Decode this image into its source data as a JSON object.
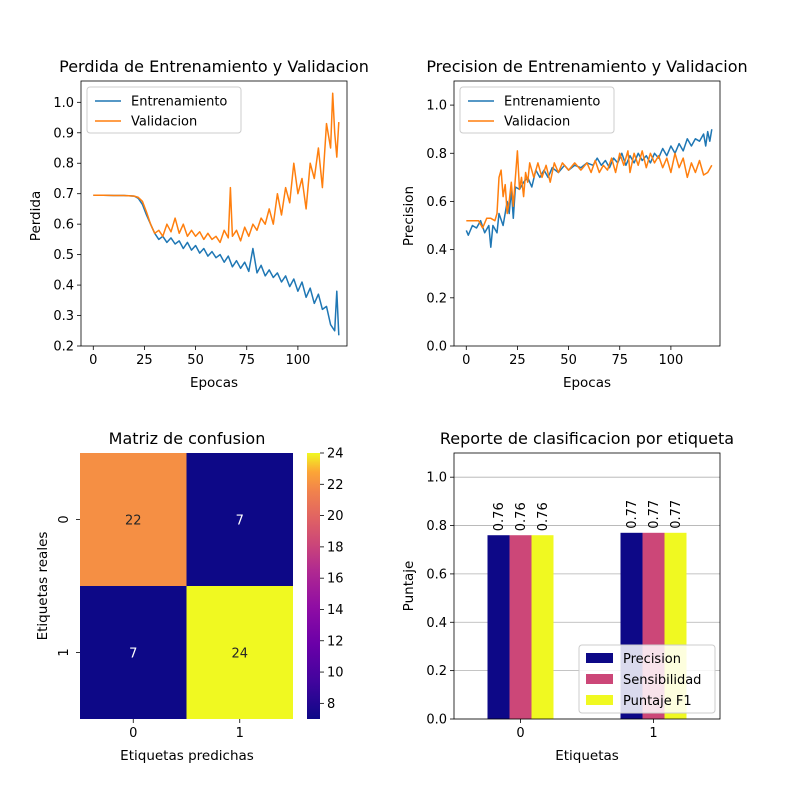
{
  "colors": {
    "train": "#1f77b4",
    "val": "#ff7f0e",
    "precision": "#0d0887",
    "sensitivity": "#cc4778",
    "f1": "#f0f921"
  },
  "chart_data": [
    {
      "type": "line",
      "title": "Perdida de Entrenamiento y Validacion",
      "xlabel": "Epocas",
      "ylabel": "Perdida",
      "xlim": [
        -6,
        124
      ],
      "ylim": [
        0.2,
        1.07
      ],
      "xticks": [
        0,
        25,
        50,
        75,
        100
      ],
      "yticks": [
        0.2,
        0.3,
        0.4,
        0.5,
        0.6,
        0.7,
        0.8,
        0.9,
        1.0
      ],
      "legend_loc": "upper-left",
      "grid": false,
      "series": [
        {
          "name": "Entrenamiento",
          "points": [
            [
              0,
              0.695
            ],
            [
              5,
              0.695
            ],
            [
              10,
              0.694
            ],
            [
              15,
              0.694
            ],
            [
              20,
              0.692
            ],
            [
              22,
              0.685
            ],
            [
              24,
              0.665
            ],
            [
              26,
              0.63
            ],
            [
              28,
              0.6
            ],
            [
              30,
              0.57
            ],
            [
              32,
              0.55
            ],
            [
              34,
              0.56
            ],
            [
              36,
              0.54
            ],
            [
              38,
              0.555
            ],
            [
              40,
              0.535
            ],
            [
              42,
              0.545
            ],
            [
              44,
              0.52
            ],
            [
              46,
              0.54
            ],
            [
              48,
              0.515
            ],
            [
              50,
              0.53
            ],
            [
              52,
              0.505
            ],
            [
              54,
              0.52
            ],
            [
              56,
              0.495
            ],
            [
              58,
              0.51
            ],
            [
              60,
              0.49
            ],
            [
              62,
              0.5
            ],
            [
              64,
              0.475
            ],
            [
              66,
              0.495
            ],
            [
              68,
              0.46
            ],
            [
              70,
              0.48
            ],
            [
              72,
              0.455
            ],
            [
              74,
              0.475
            ],
            [
              76,
              0.445
            ],
            [
              78,
              0.52
            ],
            [
              80,
              0.44
            ],
            [
              82,
              0.465
            ],
            [
              84,
              0.43
            ],
            [
              86,
              0.45
            ],
            [
              88,
              0.425
            ],
            [
              90,
              0.44
            ],
            [
              92,
              0.41
            ],
            [
              94,
              0.43
            ],
            [
              96,
              0.395
            ],
            [
              98,
              0.42
            ],
            [
              100,
              0.38
            ],
            [
              102,
              0.41
            ],
            [
              104,
              0.36
            ],
            [
              106,
              0.39
            ],
            [
              108,
              0.34
            ],
            [
              110,
              0.37
            ],
            [
              112,
              0.32
            ],
            [
              114,
              0.33
            ],
            [
              116,
              0.27
            ],
            [
              118,
              0.25
            ],
            [
              119,
              0.38
            ],
            [
              120,
              0.235
            ]
          ]
        },
        {
          "name": "Validacion",
          "points": [
            [
              0,
              0.695
            ],
            [
              5,
              0.695
            ],
            [
              10,
              0.694
            ],
            [
              15,
              0.694
            ],
            [
              20,
              0.692
            ],
            [
              22,
              0.688
            ],
            [
              24,
              0.675
            ],
            [
              26,
              0.64
            ],
            [
              28,
              0.6
            ],
            [
              30,
              0.57
            ],
            [
              32,
              0.58
            ],
            [
              34,
              0.56
            ],
            [
              36,
              0.6
            ],
            [
              38,
              0.575
            ],
            [
              40,
              0.62
            ],
            [
              42,
              0.57
            ],
            [
              44,
              0.6
            ],
            [
              46,
              0.56
            ],
            [
              48,
              0.58
            ],
            [
              50,
              0.56
            ],
            [
              52,
              0.575
            ],
            [
              54,
              0.55
            ],
            [
              56,
              0.57
            ],
            [
              58,
              0.55
            ],
            [
              60,
              0.56
            ],
            [
              62,
              0.54
            ],
            [
              64,
              0.58
            ],
            [
              66,
              0.555
            ],
            [
              67,
              0.72
            ],
            [
              68,
              0.56
            ],
            [
              70,
              0.58
            ],
            [
              72,
              0.545
            ],
            [
              74,
              0.59
            ],
            [
              76,
              0.56
            ],
            [
              78,
              0.6
            ],
            [
              80,
              0.58
            ],
            [
              82,
              0.62
            ],
            [
              84,
              0.6
            ],
            [
              86,
              0.65
            ],
            [
              88,
              0.6
            ],
            [
              90,
              0.7
            ],
            [
              92,
              0.63
            ],
            [
              94,
              0.72
            ],
            [
              96,
              0.67
            ],
            [
              98,
              0.8
            ],
            [
              100,
              0.7
            ],
            [
              102,
              0.75
            ],
            [
              104,
              0.65
            ],
            [
              106,
              0.8
            ],
            [
              108,
              0.75
            ],
            [
              110,
              0.85
            ],
            [
              112,
              0.72
            ],
            [
              114,
              0.93
            ],
            [
              116,
              0.85
            ],
            [
              117,
              1.03
            ],
            [
              118,
              0.9
            ],
            [
              119,
              0.82
            ],
            [
              120,
              0.935
            ]
          ]
        }
      ]
    },
    {
      "type": "line",
      "title": "Precision de Entrenamiento y Validacion",
      "xlabel": "Epocas",
      "ylabel": "Precision",
      "xlim": [
        -6,
        124
      ],
      "ylim": [
        0.0,
        1.1
      ],
      "xticks": [
        0,
        25,
        50,
        75,
        100
      ],
      "yticks": [
        0.0,
        0.2,
        0.4,
        0.6,
        0.8,
        1.0
      ],
      "legend_loc": "upper-left",
      "grid": false,
      "series": [
        {
          "name": "Entrenamiento",
          "points": [
            [
              0,
              0.48
            ],
            [
              1,
              0.46
            ],
            [
              3,
              0.5
            ],
            [
              5,
              0.49
            ],
            [
              7,
              0.52
            ],
            [
              9,
              0.47
            ],
            [
              11,
              0.5
            ],
            [
              12,
              0.41
            ],
            [
              13,
              0.5
            ],
            [
              15,
              0.47
            ],
            [
              16,
              0.55
            ],
            [
              18,
              0.5
            ],
            [
              20,
              0.6
            ],
            [
              21,
              0.55
            ],
            [
              22,
              0.65
            ],
            [
              23,
              0.53
            ],
            [
              24,
              0.66
            ],
            [
              26,
              0.65
            ],
            [
              28,
              0.68
            ],
            [
              30,
              0.7
            ],
            [
              32,
              0.66
            ],
            [
              34,
              0.73
            ],
            [
              36,
              0.7
            ],
            [
              38,
              0.73
            ],
            [
              40,
              0.7
            ],
            [
              42,
              0.74
            ],
            [
              45,
              0.72
            ],
            [
              48,
              0.75
            ],
            [
              50,
              0.73
            ],
            [
              53,
              0.75
            ],
            [
              56,
              0.74
            ],
            [
              59,
              0.76
            ],
            [
              62,
              0.75
            ],
            [
              64,
              0.78
            ],
            [
              66,
              0.75
            ],
            [
              68,
              0.77
            ],
            [
              70,
              0.74
            ],
            [
              72,
              0.78
            ],
            [
              74,
              0.76
            ],
            [
              76,
              0.8
            ],
            [
              78,
              0.75
            ],
            [
              80,
              0.79
            ],
            [
              82,
              0.76
            ],
            [
              84,
              0.8
            ],
            [
              86,
              0.77
            ],
            [
              88,
              0.79
            ],
            [
              90,
              0.76
            ],
            [
              92,
              0.8
            ],
            [
              94,
              0.78
            ],
            [
              96,
              0.82
            ],
            [
              98,
              0.79
            ],
            [
              100,
              0.83
            ],
            [
              102,
              0.8
            ],
            [
              104,
              0.84
            ],
            [
              106,
              0.81
            ],
            [
              108,
              0.86
            ],
            [
              110,
              0.83
            ],
            [
              112,
              0.86
            ],
            [
              114,
              0.85
            ],
            [
              116,
              0.88
            ],
            [
              117,
              0.83
            ],
            [
              118,
              0.89
            ],
            [
              119,
              0.85
            ],
            [
              120,
              0.9
            ]
          ]
        },
        {
          "name": "Validacion",
          "points": [
            [
              0,
              0.52
            ],
            [
              3,
              0.52
            ],
            [
              6,
              0.52
            ],
            [
              8,
              0.49
            ],
            [
              10,
              0.53
            ],
            [
              12,
              0.53
            ],
            [
              14,
              0.52
            ],
            [
              15,
              0.55
            ],
            [
              16,
              0.7
            ],
            [
              17,
              0.73
            ],
            [
              18,
              0.62
            ],
            [
              19,
              0.67
            ],
            [
              20,
              0.55
            ],
            [
              21,
              0.6
            ],
            [
              22,
              0.68
            ],
            [
              23,
              0.58
            ],
            [
              24,
              0.7
            ],
            [
              25,
              0.81
            ],
            [
              26,
              0.65
            ],
            [
              27,
              0.7
            ],
            [
              28,
              0.62
            ],
            [
              29,
              0.72
            ],
            [
              30,
              0.68
            ],
            [
              31,
              0.76
            ],
            [
              33,
              0.7
            ],
            [
              35,
              0.76
            ],
            [
              37,
              0.7
            ],
            [
              39,
              0.75
            ],
            [
              41,
              0.68
            ],
            [
              43,
              0.76
            ],
            [
              45,
              0.72
            ],
            [
              47,
              0.76
            ],
            [
              50,
              0.73
            ],
            [
              53,
              0.76
            ],
            [
              56,
              0.73
            ],
            [
              59,
              0.76
            ],
            [
              61,
              0.72
            ],
            [
              63,
              0.77
            ],
            [
              65,
              0.72
            ],
            [
              67,
              0.75
            ],
            [
              69,
              0.73
            ],
            [
              71,
              0.78
            ],
            [
              73,
              0.72
            ],
            [
              75,
              0.8
            ],
            [
              77,
              0.75
            ],
            [
              79,
              0.81
            ],
            [
              80,
              0.72
            ],
            [
              82,
              0.8
            ],
            [
              84,
              0.75
            ],
            [
              86,
              0.81
            ],
            [
              88,
              0.74
            ],
            [
              90,
              0.8
            ],
            [
              92,
              0.76
            ],
            [
              94,
              0.79
            ],
            [
              96,
              0.74
            ],
            [
              98,
              0.78
            ],
            [
              100,
              0.72
            ],
            [
              102,
              0.8
            ],
            [
              104,
              0.74
            ],
            [
              106,
              0.78
            ],
            [
              108,
              0.7
            ],
            [
              110,
              0.76
            ],
            [
              112,
              0.72
            ],
            [
              114,
              0.77
            ],
            [
              116,
              0.71
            ],
            [
              118,
              0.72
            ],
            [
              120,
              0.75
            ]
          ]
        }
      ]
    },
    {
      "type": "heatmap",
      "title": "Matriz de confusion",
      "xlabel": "Etiquetas predichas",
      "ylabel": "Etiquetas reales",
      "xticklabels": [
        "0",
        "1"
      ],
      "yticklabels": [
        "0",
        "1"
      ],
      "matrix": [
        [
          22,
          7
        ],
        [
          7,
          24
        ]
      ],
      "colormap": "plasma",
      "vmin": 7,
      "vmax": 24,
      "colorbar_ticks": [
        8,
        10,
        12,
        14,
        16,
        18,
        20,
        22,
        24
      ]
    },
    {
      "type": "bar",
      "title": "Reporte de clasificacion por etiqueta",
      "xlabel": "Etiquetas",
      "ylabel": "Puntaje",
      "categories": [
        "0",
        "1"
      ],
      "ylim": [
        0.0,
        1.1
      ],
      "yticks": [
        0.0,
        0.2,
        0.4,
        0.6,
        0.8,
        1.0
      ],
      "grid": true,
      "legend_loc": "lower-right",
      "series": [
        {
          "name": "Precision",
          "values": [
            0.76,
            0.77
          ],
          "labels": [
            "0.76",
            "0.77"
          ]
        },
        {
          "name": "Sensibilidad",
          "values": [
            0.76,
            0.77
          ],
          "labels": [
            "0.76",
            "0.77"
          ]
        },
        {
          "name": "Puntaje F1",
          "values": [
            0.76,
            0.77
          ],
          "labels": [
            "0.76",
            "0.77"
          ]
        }
      ]
    }
  ]
}
